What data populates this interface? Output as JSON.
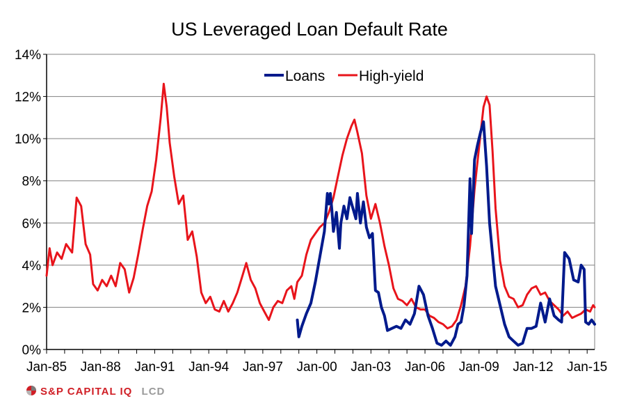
{
  "chart_data": {
    "type": "line",
    "title": "US Leveraged Loan Default Rate",
    "xlabel": "",
    "ylabel": "",
    "x_range": [
      "Jan-85",
      "Jun-15"
    ],
    "ylim": [
      0,
      14
    ],
    "y_ticks": [
      "0%",
      "2%",
      "4%",
      "6%",
      "8%",
      "10%",
      "12%",
      "14%"
    ],
    "x_ticks": [
      "Jan-85",
      "Jan-88",
      "Jan-91",
      "Jan-94",
      "Jan-97",
      "Jan-00",
      "Jan-03",
      "Jan-06",
      "Jan-09",
      "Jan-12",
      "Jan-15"
    ],
    "grid": "horizontal",
    "legend_position": "top-center",
    "series": [
      {
        "name": "Loans",
        "color": "#001a8c",
        "points": [
          [
            "Dec-98",
            1.4
          ],
          [
            "Jan-99",
            0.6
          ],
          [
            "Mar-99",
            1.1
          ],
          [
            "Jun-99",
            1.7
          ],
          [
            "Sep-99",
            2.2
          ],
          [
            "Dec-99",
            3.2
          ],
          [
            "Mar-00",
            4.4
          ],
          [
            "Jun-00",
            5.6
          ],
          [
            "Aug-00",
            7.4
          ],
          [
            "Sep-00",
            6.9
          ],
          [
            "Oct-00",
            7.4
          ],
          [
            "Nov-00",
            6.6
          ],
          [
            "Dec-00",
            5.6
          ],
          [
            "Feb-01",
            6.5
          ],
          [
            "Apr-01",
            4.8
          ],
          [
            "May-01",
            6.0
          ],
          [
            "Jul-01",
            6.8
          ],
          [
            "Sep-01",
            6.2
          ],
          [
            "Nov-01",
            7.2
          ],
          [
            "Jan-02",
            6.7
          ],
          [
            "Mar-02",
            6.2
          ],
          [
            "Apr-02",
            7.4
          ],
          [
            "Jun-02",
            6.0
          ],
          [
            "Aug-02",
            7.0
          ],
          [
            "Oct-02",
            5.8
          ],
          [
            "Dec-02",
            5.3
          ],
          [
            "Feb-03",
            5.5
          ],
          [
            "Apr-03",
            2.8
          ],
          [
            "Jun-03",
            2.7
          ],
          [
            "Aug-03",
            2.0
          ],
          [
            "Oct-03",
            1.6
          ],
          [
            "Dec-03",
            0.9
          ],
          [
            "Mar-04",
            1.0
          ],
          [
            "Jun-04",
            1.1
          ],
          [
            "Sep-04",
            1.0
          ],
          [
            "Dec-04",
            1.4
          ],
          [
            "Mar-05",
            1.2
          ],
          [
            "Jun-05",
            1.7
          ],
          [
            "Sep-05",
            3.0
          ],
          [
            "Dec-05",
            2.6
          ],
          [
            "Mar-06",
            1.6
          ],
          [
            "Jun-06",
            1.0
          ],
          [
            "Sep-06",
            0.3
          ],
          [
            "Dec-06",
            0.2
          ],
          [
            "Mar-07",
            0.4
          ],
          [
            "Jun-07",
            0.2
          ],
          [
            "Sep-07",
            0.6
          ],
          [
            "Nov-07",
            1.2
          ],
          [
            "Jan-08",
            1.3
          ],
          [
            "Mar-08",
            2.1
          ],
          [
            "May-08",
            3.5
          ],
          [
            "Jul-08",
            8.1
          ],
          [
            "Aug-08",
            5.5
          ],
          [
            "Oct-08",
            9.0
          ],
          [
            "Dec-08",
            9.7
          ],
          [
            "Feb-09",
            10.3
          ],
          [
            "Apr-09",
            10.8
          ],
          [
            "Jun-09",
            8.7
          ],
          [
            "Aug-09",
            6.0
          ],
          [
            "Oct-09",
            4.5
          ],
          [
            "Dec-09",
            3.0
          ],
          [
            "Mar-10",
            2.1
          ],
          [
            "Jun-10",
            1.2
          ],
          [
            "Sep-10",
            0.6
          ],
          [
            "Dec-10",
            0.4
          ],
          [
            "Mar-11",
            0.2
          ],
          [
            "Jun-11",
            0.3
          ],
          [
            "Sep-11",
            1.0
          ],
          [
            "Dec-11",
            1.0
          ],
          [
            "Mar-12",
            1.1
          ],
          [
            "Jun-12",
            2.2
          ],
          [
            "Sep-12",
            1.3
          ],
          [
            "Dec-12",
            2.4
          ],
          [
            "Mar-13",
            1.6
          ],
          [
            "Jun-13",
            1.4
          ],
          [
            "Aug-13",
            1.3
          ],
          [
            "Oct-13",
            4.6
          ],
          [
            "Jan-14",
            4.3
          ],
          [
            "Apr-14",
            3.3
          ],
          [
            "Jul-14",
            3.2
          ],
          [
            "Sep-14",
            4.0
          ],
          [
            "Nov-14",
            3.8
          ],
          [
            "Dec-14",
            1.3
          ],
          [
            "Feb-15",
            1.2
          ],
          [
            "Apr-15",
            1.4
          ],
          [
            "Jun-15",
            1.2
          ]
        ]
      },
      {
        "name": "High-yield",
        "color": "#e8141b",
        "points": [
          [
            "Jan-85",
            3.5
          ],
          [
            "Mar-85",
            4.8
          ],
          [
            "May-85",
            4.0
          ],
          [
            "Aug-85",
            4.6
          ],
          [
            "Nov-85",
            4.3
          ],
          [
            "Feb-86",
            5.0
          ],
          [
            "Jun-86",
            4.6
          ],
          [
            "Sep-86",
            7.2
          ],
          [
            "Dec-86",
            6.8
          ],
          [
            "Mar-87",
            5.0
          ],
          [
            "Jun-87",
            4.5
          ],
          [
            "Aug-87",
            3.1
          ],
          [
            "Nov-87",
            2.8
          ],
          [
            "Feb-88",
            3.3
          ],
          [
            "May-88",
            3.0
          ],
          [
            "Aug-88",
            3.5
          ],
          [
            "Nov-88",
            3.0
          ],
          [
            "Feb-89",
            4.1
          ],
          [
            "May-89",
            3.8
          ],
          [
            "Aug-89",
            2.7
          ],
          [
            "Nov-89",
            3.4
          ],
          [
            "Feb-90",
            4.5
          ],
          [
            "May-90",
            5.7
          ],
          [
            "Aug-90",
            6.8
          ],
          [
            "Nov-90",
            7.5
          ],
          [
            "Feb-91",
            9.0
          ],
          [
            "May-91",
            11.0
          ],
          [
            "Jul-91",
            12.6
          ],
          [
            "Sep-91",
            11.5
          ],
          [
            "Nov-91",
            9.8
          ],
          [
            "Feb-92",
            8.2
          ],
          [
            "May-92",
            6.9
          ],
          [
            "Aug-92",
            7.3
          ],
          [
            "Nov-92",
            5.2
          ],
          [
            "Feb-93",
            5.6
          ],
          [
            "May-93",
            4.4
          ],
          [
            "Aug-93",
            2.7
          ],
          [
            "Nov-93",
            2.2
          ],
          [
            "Feb-94",
            2.5
          ],
          [
            "May-94",
            1.9
          ],
          [
            "Aug-94",
            1.8
          ],
          [
            "Nov-94",
            2.3
          ],
          [
            "Feb-95",
            1.8
          ],
          [
            "May-95",
            2.2
          ],
          [
            "Aug-95",
            2.7
          ],
          [
            "Nov-95",
            3.4
          ],
          [
            "Feb-96",
            4.1
          ],
          [
            "May-96",
            3.3
          ],
          [
            "Aug-96",
            2.9
          ],
          [
            "Nov-96",
            2.2
          ],
          [
            "Feb-97",
            1.8
          ],
          [
            "May-97",
            1.4
          ],
          [
            "Aug-97",
            2.0
          ],
          [
            "Nov-97",
            2.3
          ],
          [
            "Feb-98",
            2.2
          ],
          [
            "May-98",
            2.8
          ],
          [
            "Aug-98",
            3.0
          ],
          [
            "Oct-98",
            2.4
          ],
          [
            "Dec-98",
            3.2
          ],
          [
            "Mar-99",
            3.5
          ],
          [
            "Jun-99",
            4.5
          ],
          [
            "Sep-99",
            5.2
          ],
          [
            "Dec-99",
            5.5
          ],
          [
            "Mar-00",
            5.8
          ],
          [
            "Jun-00",
            6.0
          ],
          [
            "Sep-00",
            6.5
          ],
          [
            "Dec-00",
            7.2
          ],
          [
            "Mar-01",
            8.2
          ],
          [
            "Jun-01",
            9.2
          ],
          [
            "Sep-01",
            10.0
          ],
          [
            "Dec-01",
            10.6
          ],
          [
            "Feb-02",
            10.9
          ],
          [
            "Apr-02",
            10.3
          ],
          [
            "Jul-02",
            9.3
          ],
          [
            "Oct-02",
            7.3
          ],
          [
            "Jan-03",
            6.2
          ],
          [
            "Apr-03",
            6.9
          ],
          [
            "Jul-03",
            6.0
          ],
          [
            "Oct-03",
            4.9
          ],
          [
            "Jan-04",
            4.0
          ],
          [
            "Apr-04",
            2.9
          ],
          [
            "Jul-04",
            2.4
          ],
          [
            "Oct-04",
            2.3
          ],
          [
            "Jan-05",
            2.1
          ],
          [
            "Apr-05",
            2.4
          ],
          [
            "Jul-05",
            2.0
          ],
          [
            "Oct-05",
            1.9
          ],
          [
            "Jan-06",
            1.9
          ],
          [
            "Apr-06",
            1.6
          ],
          [
            "Jul-06",
            1.5
          ],
          [
            "Oct-06",
            1.3
          ],
          [
            "Jan-07",
            1.2
          ],
          [
            "Apr-07",
            1.0
          ],
          [
            "Jul-07",
            1.1
          ],
          [
            "Oct-07",
            1.4
          ],
          [
            "Jan-08",
            2.1
          ],
          [
            "Apr-08",
            3.0
          ],
          [
            "Jul-08",
            4.9
          ],
          [
            "Oct-08",
            7.6
          ],
          [
            "Jan-09",
            9.6
          ],
          [
            "Apr-09",
            11.5
          ],
          [
            "Jun-09",
            12.0
          ],
          [
            "Aug-09",
            11.6
          ],
          [
            "Oct-09",
            9.4
          ],
          [
            "Dec-09",
            6.7
          ],
          [
            "Mar-10",
            4.2
          ],
          [
            "Jun-10",
            3.0
          ],
          [
            "Sep-10",
            2.5
          ],
          [
            "Dec-10",
            2.4
          ],
          [
            "Mar-11",
            2.0
          ],
          [
            "Jun-11",
            2.1
          ],
          [
            "Sep-11",
            2.6
          ],
          [
            "Dec-11",
            2.9
          ],
          [
            "Mar-12",
            3.0
          ],
          [
            "Jun-12",
            2.6
          ],
          [
            "Sep-12",
            2.7
          ],
          [
            "Dec-12",
            2.3
          ],
          [
            "Mar-13",
            2.1
          ],
          [
            "Jun-13",
            1.9
          ],
          [
            "Sep-13",
            1.6
          ],
          [
            "Dec-13",
            1.8
          ],
          [
            "Mar-14",
            1.5
          ],
          [
            "Jun-14",
            1.6
          ],
          [
            "Sep-14",
            1.7
          ],
          [
            "Dec-14",
            1.9
          ],
          [
            "Mar-15",
            1.8
          ],
          [
            "May-15",
            2.1
          ],
          [
            "Jun-15",
            2.0
          ]
        ]
      }
    ]
  },
  "footer": {
    "brand": "S&P CAPITAL IQ",
    "product": "LCD"
  }
}
